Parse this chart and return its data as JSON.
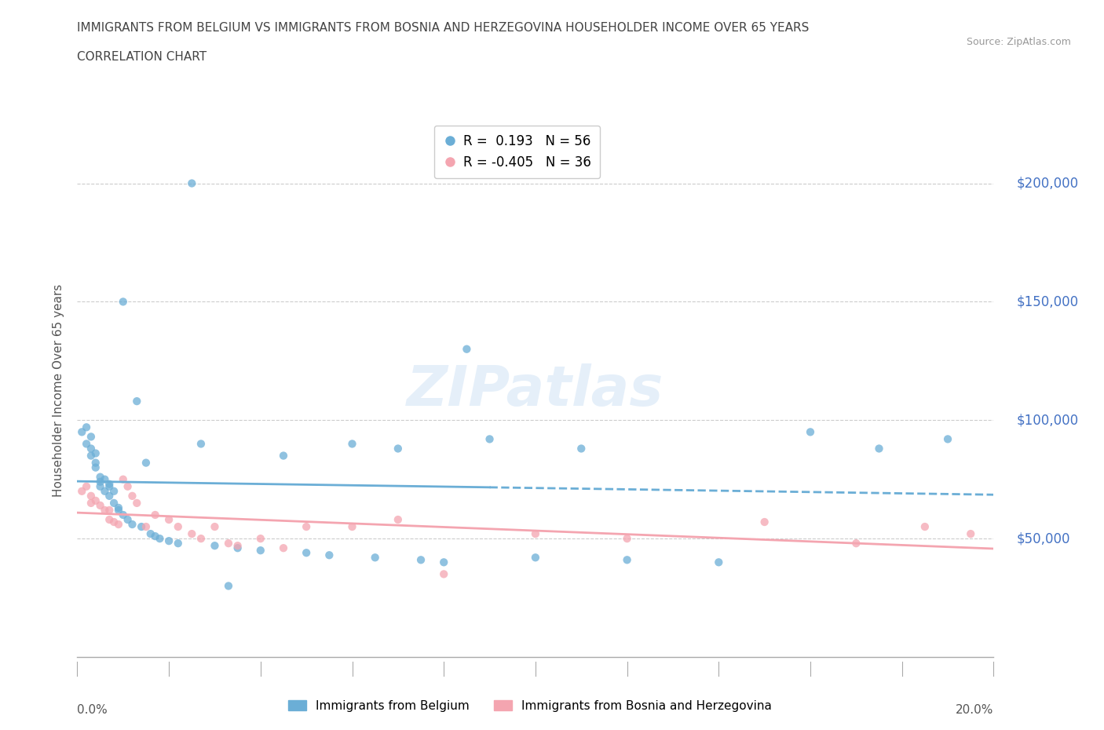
{
  "title_line1": "IMMIGRANTS FROM BELGIUM VS IMMIGRANTS FROM BOSNIA AND HERZEGOVINA HOUSEHOLDER INCOME OVER 65 YEARS",
  "title_line2": "CORRELATION CHART",
  "source": "Source: ZipAtlas.com",
  "ylabel": "Householder Income Over 65 years",
  "xlim": [
    0.0,
    0.2
  ],
  "ylim": [
    0,
    225000
  ],
  "yticks": [
    50000,
    100000,
    150000,
    200000
  ],
  "ytick_labels": [
    "$50,000",
    "$100,000",
    "$150,000",
    "$200,000"
  ],
  "grid_color": "#cccccc",
  "background_color": "#ffffff",
  "watermark": "ZIPatlas",
  "r_belgium": 0.193,
  "n_belgium": 56,
  "r_bosnia": -0.405,
  "n_bosnia": 36,
  "color_belgium": "#6baed6",
  "color_bosnia": "#f4a5b0",
  "title_color": "#444444",
  "axis_label_color": "#555555",
  "ytick_color": "#4472c4",
  "legend_label_belgium": "Immigrants from Belgium",
  "legend_label_bosnia": "Immigrants from Bosnia and Herzegovina",
  "bel_x": [
    0.001,
    0.002,
    0.002,
    0.003,
    0.003,
    0.003,
    0.004,
    0.004,
    0.004,
    0.005,
    0.005,
    0.005,
    0.006,
    0.006,
    0.007,
    0.007,
    0.007,
    0.008,
    0.008,
    0.009,
    0.009,
    0.01,
    0.01,
    0.011,
    0.012,
    0.013,
    0.014,
    0.015,
    0.016,
    0.017,
    0.018,
    0.02,
    0.022,
    0.025,
    0.027,
    0.03,
    0.033,
    0.035,
    0.04,
    0.045,
    0.05,
    0.055,
    0.06,
    0.065,
    0.07,
    0.075,
    0.08,
    0.085,
    0.09,
    0.1,
    0.11,
    0.12,
    0.14,
    0.16,
    0.175,
    0.19
  ],
  "bel_y": [
    95000,
    97000,
    90000,
    93000,
    88000,
    85000,
    86000,
    82000,
    80000,
    76000,
    74000,
    72000,
    75000,
    70000,
    73000,
    72000,
    68000,
    70000,
    65000,
    63000,
    62000,
    150000,
    60000,
    58000,
    56000,
    108000,
    55000,
    82000,
    52000,
    51000,
    50000,
    49000,
    48000,
    200000,
    90000,
    47000,
    30000,
    46000,
    45000,
    85000,
    44000,
    43000,
    90000,
    42000,
    88000,
    41000,
    40000,
    130000,
    92000,
    42000,
    88000,
    41000,
    40000,
    95000,
    88000,
    92000
  ],
  "bos_x": [
    0.001,
    0.002,
    0.003,
    0.003,
    0.004,
    0.005,
    0.006,
    0.007,
    0.007,
    0.008,
    0.009,
    0.01,
    0.011,
    0.012,
    0.013,
    0.015,
    0.017,
    0.02,
    0.022,
    0.025,
    0.027,
    0.03,
    0.033,
    0.035,
    0.04,
    0.045,
    0.05,
    0.06,
    0.07,
    0.08,
    0.1,
    0.12,
    0.15,
    0.17,
    0.185,
    0.195
  ],
  "bos_y": [
    70000,
    72000,
    65000,
    68000,
    66000,
    64000,
    62000,
    62000,
    58000,
    57000,
    56000,
    75000,
    72000,
    68000,
    65000,
    55000,
    60000,
    58000,
    55000,
    52000,
    50000,
    55000,
    48000,
    47000,
    50000,
    46000,
    55000,
    55000,
    58000,
    35000,
    52000,
    50000,
    57000,
    48000,
    55000,
    52000
  ]
}
